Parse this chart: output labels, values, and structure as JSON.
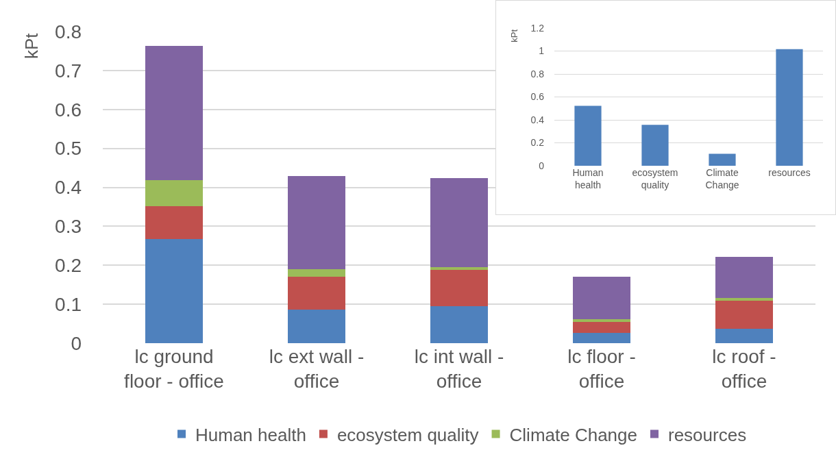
{
  "chart_data": [
    {
      "type": "bar",
      "stacked": true,
      "ylabel": "kPt",
      "categories": [
        "lc ground floor - office",
        "lc ext wall - office",
        "lc int wall - office",
        "lc floor - office",
        "lc roof - office"
      ],
      "series": [
        {
          "name": "Human health",
          "color": "#4f81bd",
          "values": [
            0.268,
            0.087,
            0.095,
            0.026,
            0.037
          ]
        },
        {
          "name": "ecosystem quality",
          "color": "#c0504d",
          "values": [
            0.084,
            0.084,
            0.093,
            0.029,
            0.072
          ]
        },
        {
          "name": "Climate Change",
          "color": "#9bbb59",
          "values": [
            0.067,
            0.019,
            0.008,
            0.006,
            0.007
          ]
        },
        {
          "name": "resources",
          "color": "#8064a2",
          "values": [
            0.344,
            0.239,
            0.228,
            0.109,
            0.105
          ]
        }
      ],
      "ylim": [
        0,
        0.8
      ],
      "yticks": [
        0,
        0.1,
        0.2,
        0.3,
        0.4,
        0.5,
        0.6,
        0.7,
        0.8
      ],
      "grid": "y",
      "legend": "bottom"
    },
    {
      "type": "bar",
      "ylabel": "kPt",
      "categories": [
        "Human health",
        "ecosystem quality",
        "Climate Change",
        "resources"
      ],
      "color": "#4f81bd",
      "values": [
        0.522,
        0.357,
        0.104,
        1.017
      ],
      "ylim": [
        0,
        1.2
      ],
      "yticks": [
        0,
        0.2,
        0.4,
        0.6,
        0.8,
        1,
        1.2
      ],
      "grid": "y"
    }
  ]
}
